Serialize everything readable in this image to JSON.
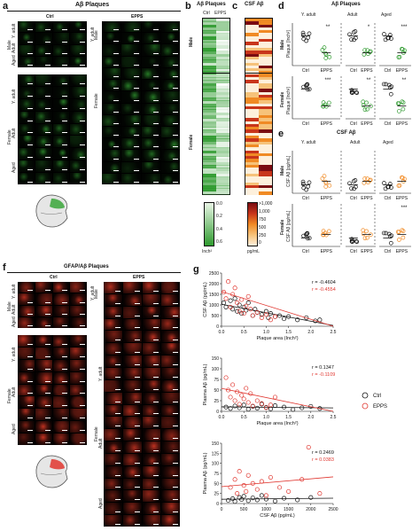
{
  "panel_letters": {
    "a": "a",
    "b": "b",
    "c": "c",
    "d": "d",
    "e": "e",
    "f": "f",
    "g": "g"
  },
  "panel_a": {
    "title": "Aβ Plaques",
    "col_ctrl": "Ctrl",
    "col_epps": "EPPS",
    "sex_male": "Male",
    "sex_female": "Female",
    "age_y_adult": "Y. adult",
    "age_adult": "Adult",
    "age_aged": "Aged"
  },
  "panel_b": {
    "title": "Aβ Plaques",
    "col_ctrl": "Ctrl",
    "col_epps": "EPPS",
    "sex_male": "Male",
    "sex_female": "Female",
    "scale_top": "0.6",
    "scale_mid1": "0.4",
    "scale_mid2": "0.2",
    "scale_bot": "0.0",
    "unit": "Inch²",
    "accent": "#2e9a2e"
  },
  "panel_c": {
    "title": "CSF Aβ",
    "scale_top": ">1,000",
    "scale_2": "1,000",
    "scale_3": "750",
    "scale_4": "500",
    "scale_5": "250",
    "scale_bot": "0",
    "unit": "pg/mL"
  },
  "panel_d": {
    "title": "Aβ Plaques",
    "col_y_adult": "Y. adult",
    "col_adult": "Adult",
    "col_aged": "Aged",
    "row_male": "Male",
    "row_female": "Female",
    "ylabel": "Plaque [Inch²]",
    "x_ctrl": "Ctrl",
    "x_epps": "EPPS",
    "sig": {
      "m_y": "**",
      "m_a": "*",
      "m_g": "***",
      "f_y": "***",
      "f_a": "**",
      "f_g": "**"
    }
  },
  "panel_e": {
    "title": "CSF Aβ",
    "col_y_adult": "Y. adult",
    "col_adult": "Adult",
    "col_aged": "Aged",
    "row_male": "Male",
    "row_female": "Female",
    "ylabel": "CSF Aβ [pg/mL]",
    "x_ctrl": "Ctrl",
    "x_epps": "EPPS",
    "sig_f_g": "***"
  },
  "panel_f": {
    "title": "GFAP/Aβ Plaques",
    "col_ctrl": "Ctrl",
    "col_epps": "EPPS",
    "sex_male": "Male",
    "sex_female": "Female",
    "age_y_adult": "Y. adult",
    "age_adult": "Adult",
    "age_aged": "Aged"
  },
  "panel_g": {
    "legend_ctrl": "Ctrl",
    "legend_epps": "EPPS",
    "colors": {
      "ctrl": "#111111",
      "epps": "#e0362f"
    },
    "plot1": {
      "ylabel": "CSF Aβ (pg/mL)",
      "xlabel": "Plaque area (Inch²)",
      "r_ctrl": "r = -0.4604",
      "r_epps": "r = -0.4554"
    },
    "plot2": {
      "ylabel": "Plasma Aβ (pg/mL)",
      "xlabel": "Plaque area (Inch²)",
      "r_ctrl": "r = 0.1347",
      "r_epps": "r = -0.1109"
    },
    "plot3": {
      "ylabel": "Plasma Aβ (pg/mL)",
      "xlabel": "CSF Aβ (pg/mL)",
      "r_ctrl": "r = 0.2469",
      "r_epps": "r = 0.0383"
    }
  },
  "chart_data": [
    {
      "type": "scatter",
      "xlabel": "Plaque area (Inch²)",
      "ylabel": "CSF Aβ (pg/mL)",
      "xlim": [
        0,
        2.5
      ],
      "ylim": [
        0,
        2500
      ],
      "xticks": [
        "0.0",
        "0.5",
        "1.0",
        "1.5",
        "2.0",
        "2.5"
      ],
      "yticks": [
        "0",
        "500",
        "1000",
        "1500",
        "2000",
        "2500"
      ],
      "series": [
        {
          "name": "Ctrl",
          "points": [
            [
              0.05,
              1100
            ],
            [
              0.1,
              900
            ],
            [
              0.2,
              1200
            ],
            [
              0.25,
              800
            ],
            [
              0.3,
              1300
            ],
            [
              0.35,
              700
            ],
            [
              0.4,
              1000
            ],
            [
              0.45,
              600
            ],
            [
              0.5,
              900
            ],
            [
              0.55,
              750
            ],
            [
              0.6,
              1100
            ],
            [
              0.7,
              500
            ],
            [
              0.75,
              800
            ],
            [
              0.8,
              650
            ],
            [
              0.9,
              550
            ],
            [
              1.0,
              700
            ],
            [
              1.05,
              400
            ],
            [
              1.1,
              600
            ],
            [
              1.2,
              450
            ],
            [
              1.3,
              500
            ],
            [
              1.4,
              350
            ],
            [
              1.5,
              450
            ],
            [
              1.7,
              300
            ],
            [
              1.9,
              400
            ],
            [
              2.1,
              250
            ],
            [
              2.2,
              300
            ]
          ]
        },
        {
          "name": "EPPS",
          "points": [
            [
              0.05,
              1600
            ],
            [
              0.1,
              1300
            ],
            [
              0.15,
              2100
            ],
            [
              0.2,
              900
            ],
            [
              0.25,
              1500
            ],
            [
              0.3,
              1800
            ],
            [
              0.35,
              1100
            ],
            [
              0.4,
              700
            ],
            [
              0.45,
              1250
            ],
            [
              0.5,
              600
            ],
            [
              0.55,
              950
            ],
            [
              0.6,
              1400
            ],
            [
              0.65,
              800
            ],
            [
              0.7,
              500
            ],
            [
              0.8,
              650
            ],
            [
              0.9,
              400
            ],
            [
              1.0,
              550
            ],
            [
              1.1,
              300
            ],
            [
              1.2,
              450
            ]
          ]
        }
      ]
    },
    {
      "type": "scatter",
      "xlabel": "Plaque area (Inch²)",
      "ylabel": "Plasma Aβ (pg/mL)",
      "xlim": [
        0,
        2.5
      ],
      "ylim": [
        0,
        150
      ],
      "xticks": [
        "0.0",
        "0.5",
        "1.0",
        "1.5",
        "2.0",
        "2.5"
      ],
      "yticks": [
        "0",
        "25",
        "50",
        "75",
        "100",
        "150"
      ],
      "series": [
        {
          "name": "Ctrl",
          "points": [
            [
              0.1,
              12
            ],
            [
              0.2,
              8
            ],
            [
              0.3,
              15
            ],
            [
              0.4,
              10
            ],
            [
              0.5,
              18
            ],
            [
              0.6,
              6
            ],
            [
              0.7,
              14
            ],
            [
              0.8,
              9
            ],
            [
              0.9,
              20
            ],
            [
              1.0,
              11
            ],
            [
              1.1,
              7
            ],
            [
              1.2,
              16
            ],
            [
              1.4,
              12
            ],
            [
              1.6,
              5
            ],
            [
              1.8,
              10
            ],
            [
              2.0,
              14
            ],
            [
              2.2,
              8
            ]
          ]
        },
        {
          "name": "EPPS",
          "points": [
            [
              0.1,
              95
            ],
            [
              0.15,
              60
            ],
            [
              0.2,
              40
            ],
            [
              0.25,
              75
            ],
            [
              0.3,
              30
            ],
            [
              0.35,
              55
            ],
            [
              0.4,
              20
            ],
            [
              0.45,
              45
            ],
            [
              0.5,
              35
            ],
            [
              0.55,
              65
            ],
            [
              0.6,
              25
            ],
            [
              0.65,
              50
            ],
            [
              0.7,
              15
            ],
            [
              0.8,
              30
            ],
            [
              0.9,
              22
            ],
            [
              1.0,
              10
            ],
            [
              1.1,
              18
            ],
            [
              1.2,
              40
            ]
          ]
        }
      ]
    },
    {
      "type": "scatter",
      "xlabel": "CSF Aβ (pg/mL)",
      "ylabel": "Plasma Aβ (pg/mL)",
      "xlim": [
        0,
        2500
      ],
      "ylim": [
        0,
        150
      ],
      "xticks": [
        "0",
        "500",
        "1000",
        "1500",
        "2000",
        "2500"
      ],
      "yticks": [
        "0",
        "25",
        "50",
        "75",
        "100",
        "125",
        "150"
      ],
      "series": [
        {
          "name": "Ctrl",
          "points": [
            [
              150,
              8
            ],
            [
              250,
              12
            ],
            [
              300,
              5
            ],
            [
              400,
              15
            ],
            [
              450,
              10
            ],
            [
              500,
              18
            ],
            [
              600,
              7
            ],
            [
              700,
              14
            ],
            [
              800,
              9
            ],
            [
              900,
              20
            ],
            [
              1000,
              11
            ],
            [
              1200,
              6
            ],
            [
              1400,
              13
            ],
            [
              1700,
              9
            ],
            [
              2000,
              15
            ]
          ]
        },
        {
          "name": "EPPS",
          "points": [
            [
              200,
              40
            ],
            [
              300,
              60
            ],
            [
              350,
              25
            ],
            [
              400,
              80
            ],
            [
              500,
              45
            ],
            [
              550,
              30
            ],
            [
              600,
              70
            ],
            [
              700,
              50
            ],
            [
              800,
              35
            ],
            [
              900,
              55
            ],
            [
              1000,
              20
            ],
            [
              1100,
              65
            ],
            [
              1300,
              40
            ],
            [
              1500,
              30
            ],
            [
              1800,
              60
            ],
            [
              2200,
              25
            ],
            [
              1950,
              140
            ]
          ]
        }
      ]
    }
  ]
}
